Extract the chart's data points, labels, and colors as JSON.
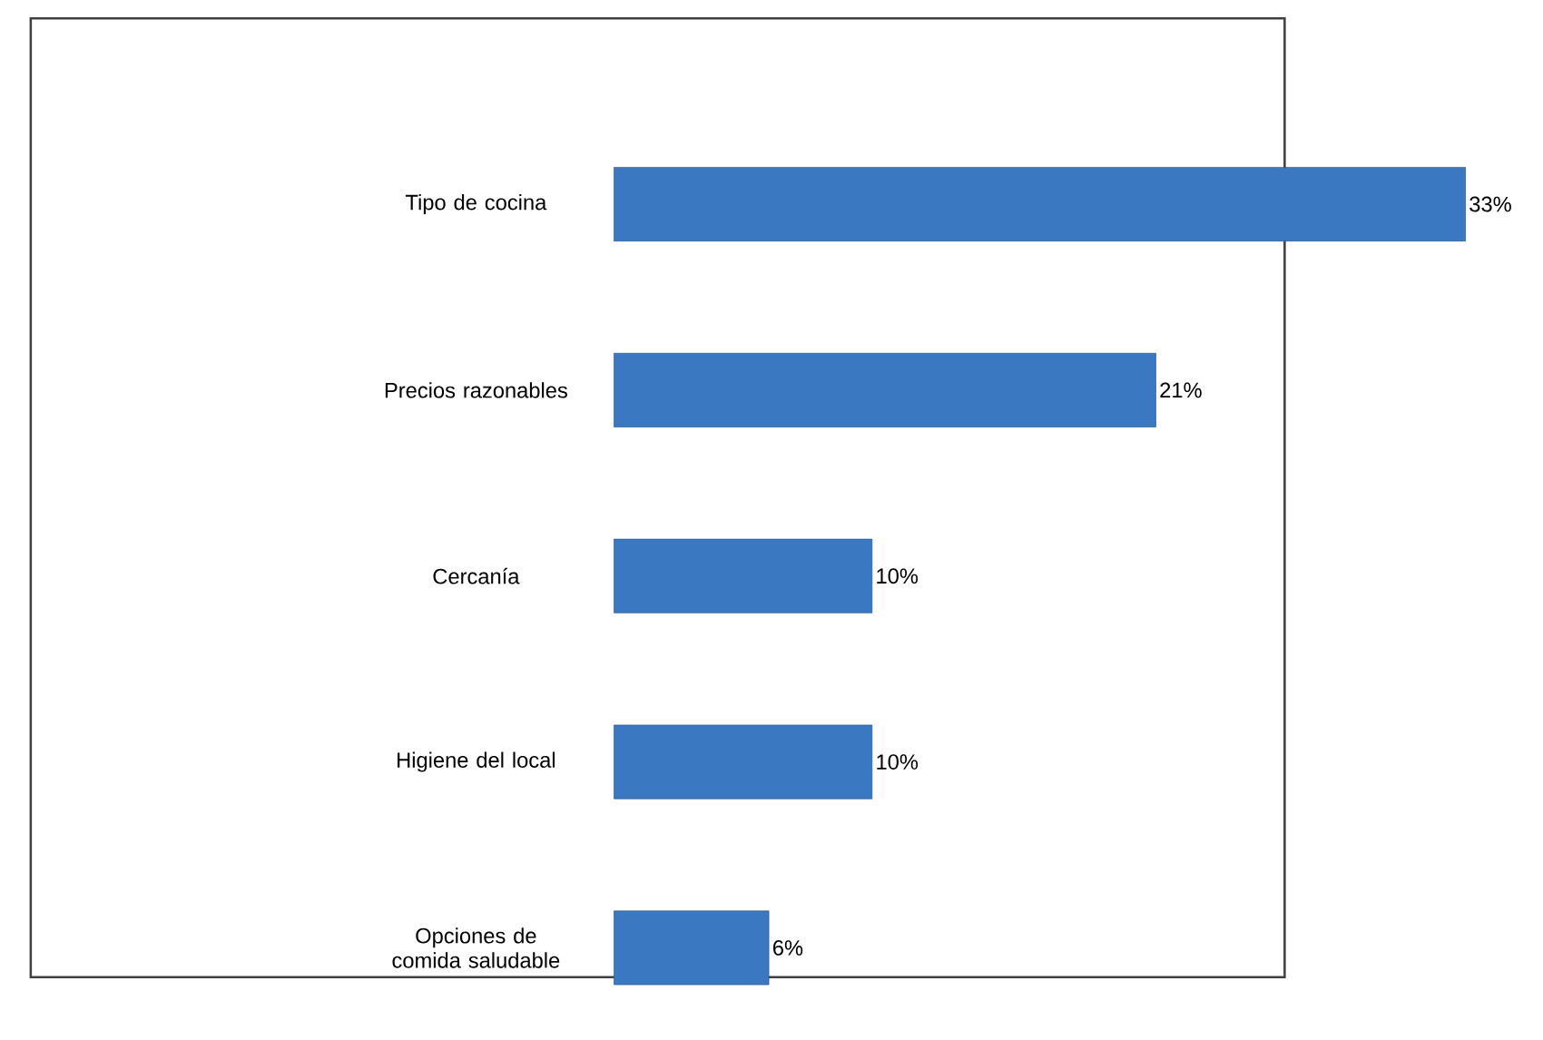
{
  "chart_data": {
    "type": "bar",
    "orientation": "horizontal",
    "tick_labels": "y",
    "categories": [
      "Tipo de cocina",
      "Precios razonables",
      "Cercanía",
      "Higiene del local",
      "Opciones de comida saludable"
    ],
    "values": [
      33,
      21,
      10,
      10,
      6
    ],
    "value_labels": [
      "33%",
      "21%",
      "10%",
      "10%",
      "6%"
    ],
    "color": "#3b78c2"
  }
}
